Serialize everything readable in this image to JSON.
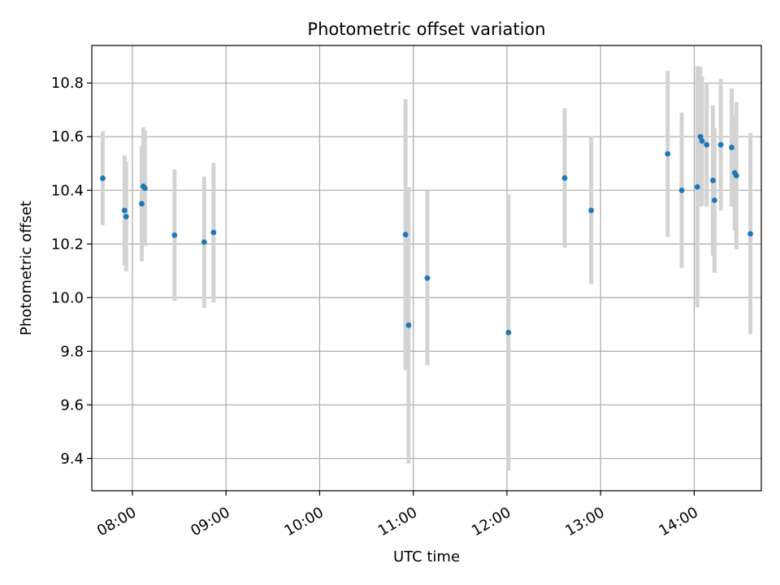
{
  "chart_data": {
    "type": "scatter",
    "title": "Photometric offset variation",
    "xlabel": "UTC time",
    "ylabel": "Photometric offset",
    "x_unit": "UTC time (HH:MM)",
    "xlim": [
      "07:34",
      "14:43"
    ],
    "ylim": [
      9.28,
      10.94
    ],
    "grid": true,
    "x_ticks": [
      "08:00",
      "09:00",
      "10:00",
      "11:00",
      "12:00",
      "13:00",
      "14:00"
    ],
    "y_ticks": [
      9.4,
      9.6,
      9.8,
      10.0,
      10.2,
      10.4,
      10.6,
      10.8
    ],
    "y_tick_labels": [
      "9.4",
      "9.6",
      "9.8",
      "10.0",
      "10.2",
      "10.4",
      "10.6",
      "10.8"
    ],
    "point_color": "#1f77b4",
    "errorbar_color": "#d3d3d3",
    "points": [
      {
        "x": "07:41",
        "y": 10.445,
        "err": 0.175
      },
      {
        "x": "07:55",
        "y": 10.325,
        "err": 0.205
      },
      {
        "x": "07:56",
        "y": 10.302,
        "err": 0.205
      },
      {
        "x": "08:06",
        "y": 10.35,
        "err": 0.215
      },
      {
        "x": "08:07",
        "y": 10.415,
        "err": 0.22
      },
      {
        "x": "08:08",
        "y": 10.408,
        "err": 0.215
      },
      {
        "x": "08:27",
        "y": 10.233,
        "err": 0.245
      },
      {
        "x": "08:46",
        "y": 10.207,
        "err": 0.245
      },
      {
        "x": "08:52",
        "y": 10.243,
        "err": 0.26
      },
      {
        "x": "10:55",
        "y": 10.235,
        "err": 0.505
      },
      {
        "x": "10:57",
        "y": 9.897,
        "err": 0.515
      },
      {
        "x": "11:09",
        "y": 10.073,
        "err": 0.325
      },
      {
        "x": "12:01",
        "y": 9.87,
        "err": 0.515
      },
      {
        "x": "12:37",
        "y": 10.446,
        "err": 0.26
      },
      {
        "x": "12:54",
        "y": 10.325,
        "err": 0.275
      },
      {
        "x": "13:43",
        "y": 10.536,
        "err": 0.31
      },
      {
        "x": "13:52",
        "y": 10.4,
        "err": 0.29
      },
      {
        "x": "14:02",
        "y": 10.413,
        "err": 0.45
      },
      {
        "x": "14:04",
        "y": 10.6,
        "err": 0.26
      },
      {
        "x": "14:05",
        "y": 10.584,
        "err": 0.24
      },
      {
        "x": "14:08",
        "y": 10.57,
        "err": 0.23
      },
      {
        "x": "14:12",
        "y": 10.437,
        "err": 0.28
      },
      {
        "x": "14:13",
        "y": 10.363,
        "err": 0.27
      },
      {
        "x": "14:17",
        "y": 10.57,
        "err": 0.245
      },
      {
        "x": "14:24",
        "y": 10.56,
        "err": 0.22
      },
      {
        "x": "14:26",
        "y": 10.465,
        "err": 0.215
      },
      {
        "x": "14:27",
        "y": 10.455,
        "err": 0.275
      },
      {
        "x": "14:36",
        "y": 10.238,
        "err": 0.375
      }
    ]
  }
}
